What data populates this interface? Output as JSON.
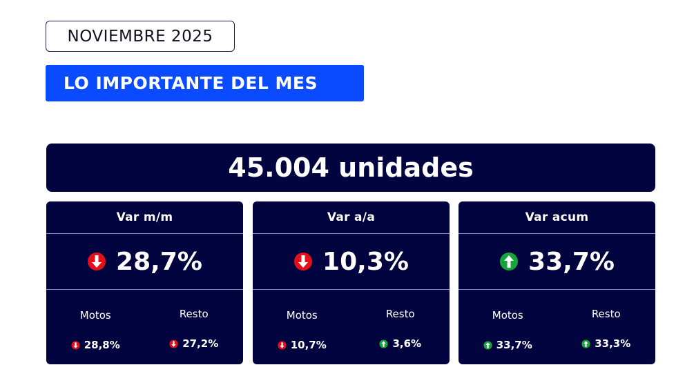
{
  "date_label": "NOVIEMBRE 2025",
  "headline": "LO IMPORTANTE DEL MES",
  "units": "45.004 unidades",
  "colors": {
    "down": "#e3101a",
    "up": "#17a43a",
    "panel": "#02043f",
    "accent": "#0b4bff"
  },
  "cards": [
    {
      "title": "Var m/m",
      "value": "28,7%",
      "direction": "down",
      "motos_label": "Motos",
      "motos_value": "28,8%",
      "motos_direction": "down",
      "resto_label": "Resto",
      "resto_value": "27,2%",
      "resto_direction": "down"
    },
    {
      "title": "Var a/a",
      "value": "10,3%",
      "direction": "down",
      "motos_label": "Motos",
      "motos_value": "10,7%",
      "motos_direction": "down",
      "resto_label": "Resto",
      "resto_value": "3,6%",
      "resto_direction": "up"
    },
    {
      "title": "Var acum",
      "value": "33,7%",
      "direction": "up",
      "motos_label": "Motos",
      "motos_value": "33,7%",
      "motos_direction": "up",
      "resto_label": "Resto",
      "resto_value": "33,3%",
      "resto_direction": "up"
    }
  ]
}
